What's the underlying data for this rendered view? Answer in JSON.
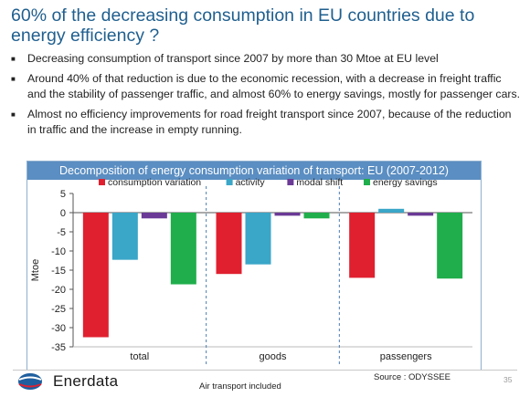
{
  "slide": {
    "title": "60% of the decreasing consumption in EU countries due to energy efficiency ?",
    "bullets": [
      "Decreasing consumption of transport since 2007 by more than 30 Mtoe at EU level",
      "Around 40% of that reduction is due to the economic recession, with a decrease in freight traffic and the stability of passenger traffic, and almost 60% to energy savings, mostly for passenger cars.",
      "Almost no  efficiency improvements for road freight transport since 2007, because of the reduction in traffic  and the increase in empty running."
    ],
    "footnote": "Air transport included",
    "source": "Source : ODYSSEE",
    "page_number": "35",
    "logo_text": "Enerdata"
  },
  "chart_data": {
    "type": "bar",
    "title": "Decomposition of  energy consumption variation of transport: EU (2007-2012)",
    "ylabel": "Mtoe",
    "xlabel": "",
    "categories": [
      "total",
      "goods",
      "passengers"
    ],
    "ylim": [
      -35,
      5
    ],
    "yticks": [
      5,
      0,
      -5,
      -10,
      -15,
      -20,
      -25,
      -30,
      -35
    ],
    "legend_position": "top",
    "series": [
      {
        "name": "consumption variation",
        "color": "#e0202f",
        "values": [
          -32.5,
          -16,
          -17
        ]
      },
      {
        "name": "activity",
        "color": "#3aa6c8",
        "values": [
          -12.3,
          -13.5,
          1
        ]
      },
      {
        "name": "modal shift",
        "color": "#6a3a96",
        "values": [
          -1.5,
          -0.8,
          -0.8
        ]
      },
      {
        "name": "energy savings",
        "color": "#1fae4b",
        "values": [
          -18.7,
          -1.5,
          -17.2
        ]
      }
    ]
  }
}
